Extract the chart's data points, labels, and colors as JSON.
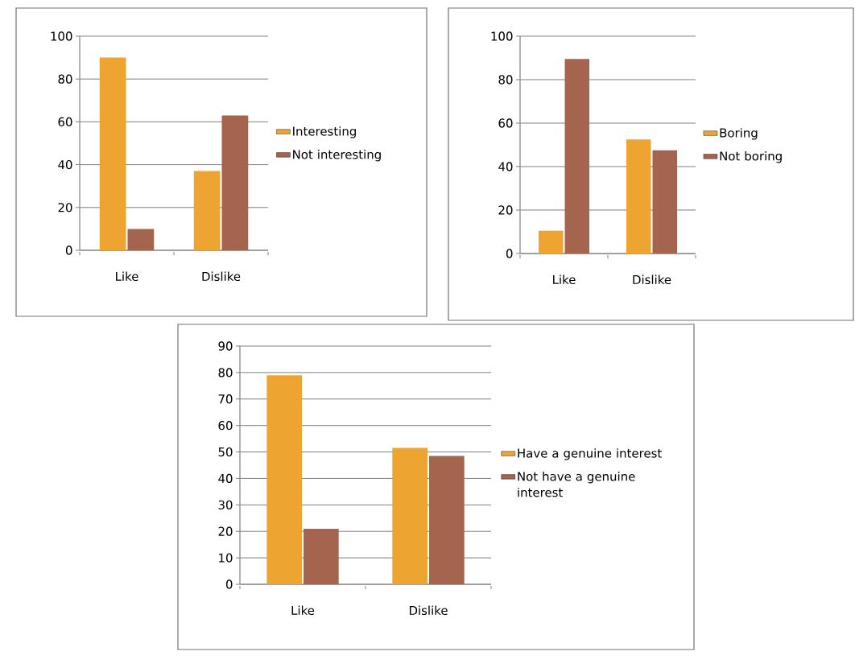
{
  "chart_data": [
    {
      "type": "bar",
      "categories": [
        "Like",
        "Dislike"
      ],
      "series": [
        {
          "name": "Interesting",
          "color": "#eea431",
          "values": [
            90,
            37
          ]
        },
        {
          "name": "Not interesting",
          "color": "#a4644e",
          "values": [
            10,
            63
          ]
        }
      ],
      "ylim": [
        0,
        100
      ],
      "yticks": [
        0,
        20,
        40,
        60,
        80,
        100
      ],
      "grid": "y",
      "legend": "right"
    },
    {
      "type": "bar",
      "categories": [
        "Like",
        "Dislike"
      ],
      "series": [
        {
          "name": "Boring",
          "color": "#eea431",
          "values": [
            10.5,
            52.5
          ]
        },
        {
          "name": "Not boring",
          "color": "#a4644e",
          "values": [
            89.5,
            47.5
          ]
        }
      ],
      "ylim": [
        0,
        100
      ],
      "yticks": [
        0,
        20,
        40,
        60,
        80,
        100
      ],
      "grid": "y",
      "legend": "right"
    },
    {
      "type": "bar",
      "categories": [
        "Like",
        "Dislike"
      ],
      "series": [
        {
          "name": "Have a genuine interest",
          "color": "#eea431",
          "values": [
            79,
            51.5
          ]
        },
        {
          "name": "Not have a genuine interest",
          "color": "#a4644e",
          "values": [
            21,
            48.5
          ]
        }
      ],
      "ylim": [
        0,
        90
      ],
      "yticks": [
        0,
        10,
        20,
        30,
        40,
        50,
        60,
        70,
        80,
        90
      ],
      "grid": "y",
      "legend": "right"
    }
  ]
}
